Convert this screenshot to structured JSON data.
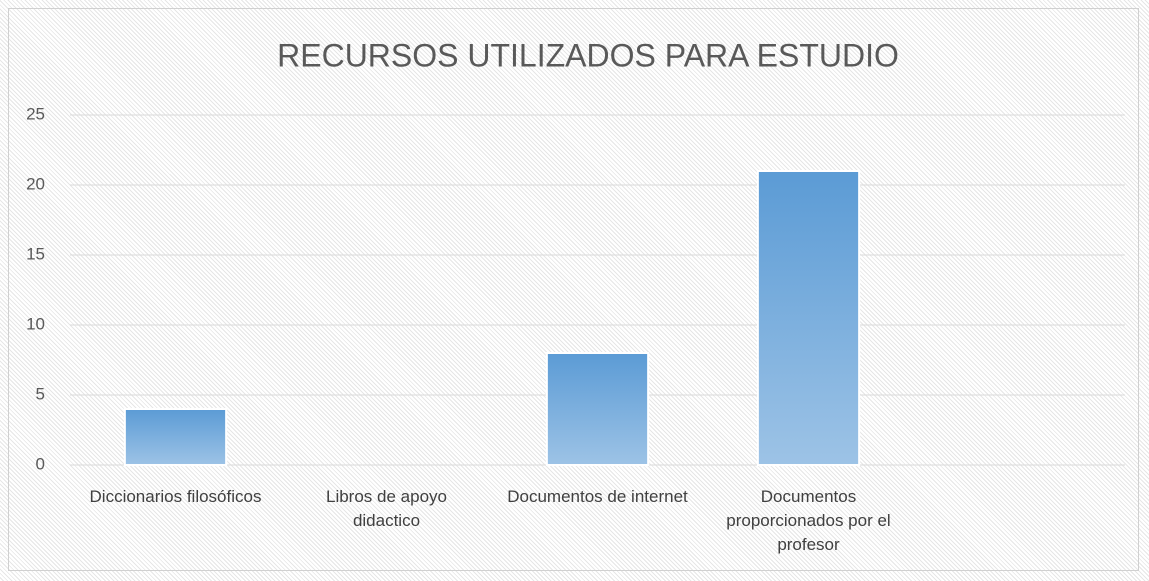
{
  "chart_data": {
    "type": "bar",
    "title": "RECURSOS UTILIZADOS PARA ESTUDIO",
    "categories": [
      "Diccionarios filosóficos",
      "Libros de apoyo didactico",
      "Documentos de internet",
      "Documentos proporcionados por el profesor",
      null
    ],
    "values": [
      4,
      0,
      8,
      21,
      null
    ],
    "color": "#5b9bd5",
    "ylim": [
      0,
      25
    ],
    "yticks": [
      0,
      5,
      10,
      15,
      20,
      25
    ],
    "grid": true
  }
}
